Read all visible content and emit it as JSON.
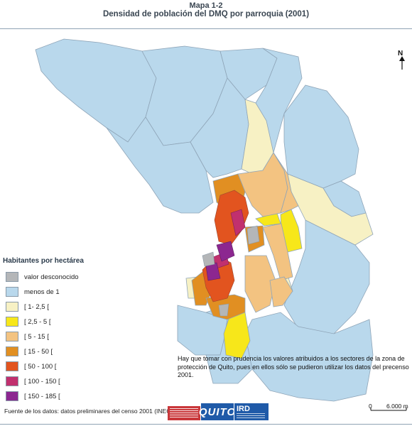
{
  "header": {
    "map_number": "Mapa 1-2",
    "title": "Densidad de población del DMQ por parroquia (2001)"
  },
  "north_label": "N",
  "legend": {
    "title": "Habitantes por hectárea",
    "items": [
      {
        "label": "valor desconocido",
        "color": "#b4b6b8"
      },
      {
        "label": "menos de 1",
        "color": "#b9d8ec"
      },
      {
        "label": "[ 1-  2,5 [",
        "color": "#f7f1c4"
      },
      {
        "label": "[ 2,5 - 5 [",
        "color": "#f7e71a"
      },
      {
        "label": "[ 5 - 15 [",
        "color": "#f3c381"
      },
      {
        "label": "[ 15 - 50 [",
        "color": "#e18f22"
      },
      {
        "label": "[ 50 - 100 [",
        "color": "#e2541f"
      },
      {
        "label": "[ 100 - 150 [",
        "color": "#c1306e"
      },
      {
        "label": "[ 150 - 185 [",
        "color": "#8c2790"
      }
    ]
  },
  "note": "Hay que tomar con prudencia los valores atribuidos a los sectores de la zona de protección de Quito, pues en ellos sólo se pudieron  utilizar los datos del precenso 2001.",
  "source": "Fuente de los datos: datos preliminares del censo 2001 (INEC)",
  "logos": {
    "quito": "QUITO",
    "ird": "IRD"
  },
  "scale": {
    "start": "0",
    "end": "6.000 m"
  },
  "colors": {
    "boundary": "#8fa5b8",
    "map_outline": "#6f8aa3"
  }
}
